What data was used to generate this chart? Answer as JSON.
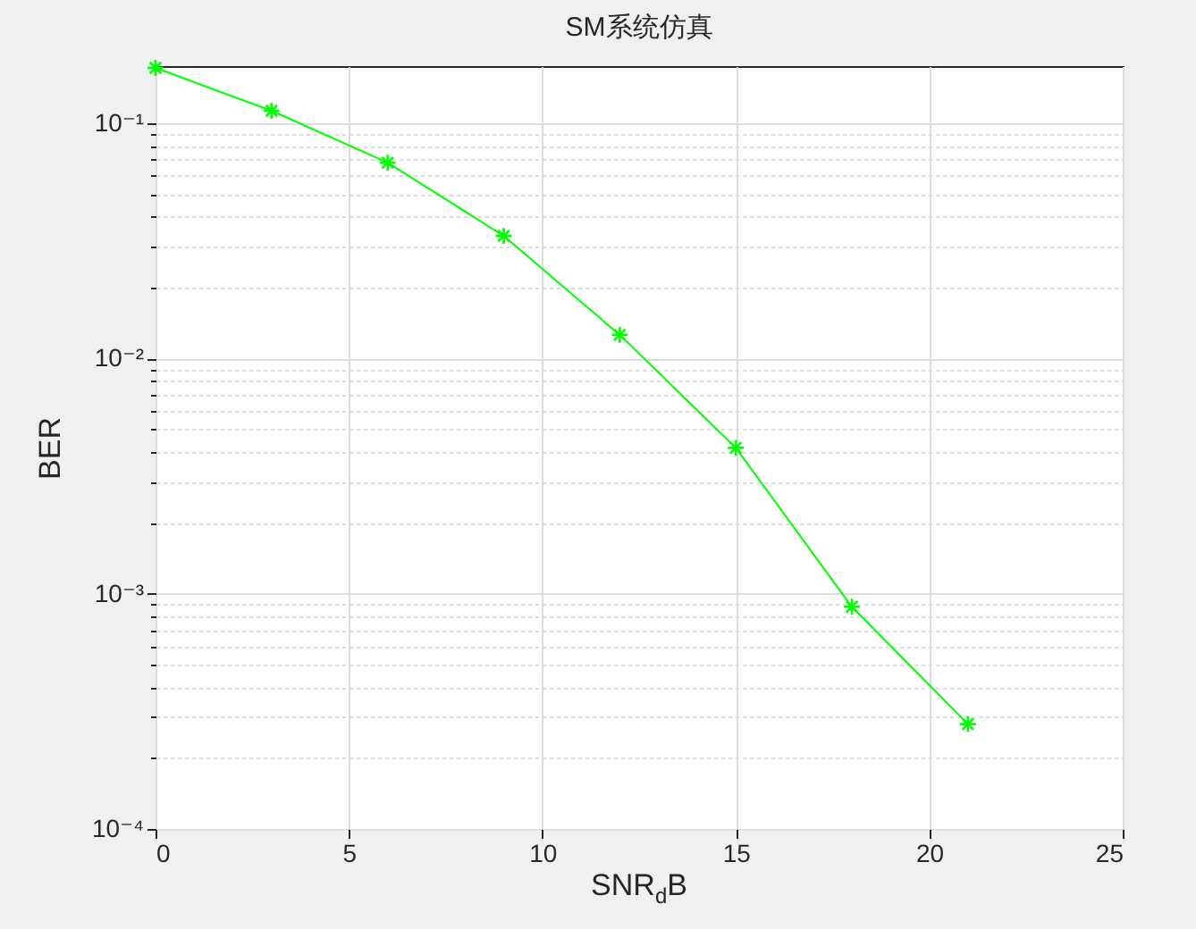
{
  "chart_data": {
    "type": "line",
    "title": "SM系统仿真",
    "xlabel": "SNR$_{d}$B",
    "ylabel": "BER",
    "x": [
      0,
      3,
      6,
      9,
      12,
      15,
      18,
      21
    ],
    "series": [
      {
        "color": "#00ff00",
        "values": [
          0.172,
          0.113,
          0.068,
          0.0332,
          0.0126,
          0.00417,
          0.00088,
          0.000279
        ]
      }
    ],
    "xlim": [
      0,
      25
    ],
    "xticks": [
      0,
      5,
      10,
      15,
      20,
      25
    ],
    "ylim": [
      0.0001,
      0.175
    ],
    "yticks": [
      {
        "value": 0.0001,
        "label": "10⁻⁴"
      },
      {
        "value": 0.001,
        "label": "10⁻³"
      },
      {
        "value": 0.01,
        "label": "10⁻²"
      },
      {
        "value": 0.1,
        "label": "10⁻¹"
      }
    ],
    "log": true,
    "grid": true,
    "marker": "cross",
    "line_style": "solid"
  }
}
